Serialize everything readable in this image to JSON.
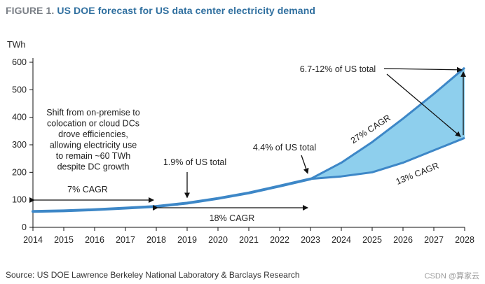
{
  "figure": {
    "label": "FIGURE 1.",
    "title": "US DOE forecast for US data center electricity demand",
    "source": "Source: US DOE Lawrence Berkeley National Laboratory & Barclays Research",
    "watermark": "CSDN @算家云"
  },
  "chart_data": {
    "type": "area",
    "title": "US DOE forecast for US data center electricity demand",
    "ylabel": "TWh",
    "xlabel": "",
    "xlim": [
      2014,
      2028
    ],
    "ylim": [
      0,
      600
    ],
    "x_ticks": [
      "2014",
      "2015",
      "2016",
      "2017",
      "2018",
      "2019",
      "2020",
      "2021",
      "2022",
      "2023",
      "2024",
      "2025",
      "2026",
      "2027",
      "2028"
    ],
    "y_ticks": [
      "0",
      "100",
      "200",
      "300",
      "400",
      "500",
      "600"
    ],
    "grid": false,
    "series": [
      {
        "x": [
          2014,
          2015,
          2016,
          2017,
          2018,
          2019,
          2020,
          2021,
          2022,
          2023
        ],
        "values": [
          58,
          60,
          64,
          70,
          76,
          88,
          105,
          125,
          150,
          176
        ]
      },
      {
        "x": [
          2023,
          2024,
          2025,
          2026,
          2027,
          2028
        ],
        "values": [
          176,
          235,
          310,
          395,
          485,
          580
        ]
      },
      {
        "x": [
          2023,
          2024,
          2025,
          2026,
          2027,
          2028
        ],
        "values": [
          176,
          185,
          200,
          235,
          280,
          325
        ]
      }
    ],
    "colors": {
      "line": "#3d87c7",
      "fill": "#8ecfed",
      "arrow": "#111111"
    },
    "annotations": {
      "shift_text": [
        "Shift from on-premise to",
        "colocation or cloud DCs",
        "drove efficiencies,",
        "allowing electricity use",
        "to remain ~60 TWh",
        "despite DC growth"
      ],
      "cagr_7": "7% CAGR",
      "cagr_18": "18% CAGR",
      "pct_2019": "1.9% of US total",
      "pct_2023": "4.4% of US total",
      "pct_2028": "6.7-12% of US total",
      "cagr_27": "27% CAGR",
      "cagr_13": "13% CAGR"
    }
  }
}
